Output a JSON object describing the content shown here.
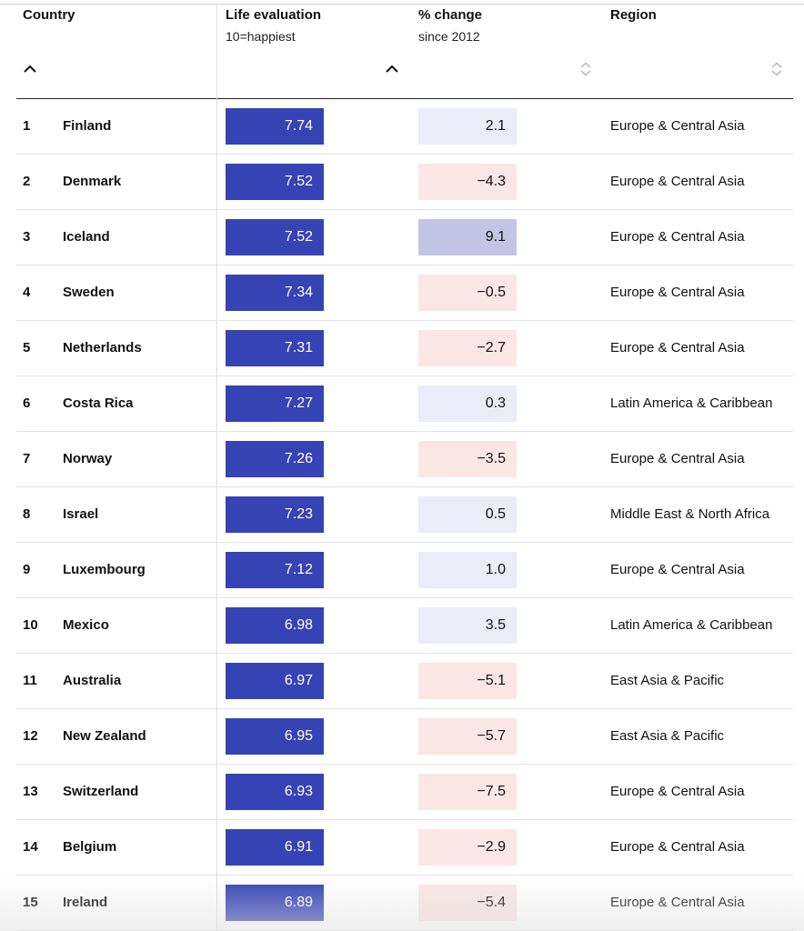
{
  "colors": {
    "score_bar": "#3643b4",
    "change_negative": "#fbe6e6",
    "change_small_positive": "#eaecf8",
    "change_large_positive": "#c4c5e6"
  },
  "headers": {
    "country": {
      "title": "Country"
    },
    "life": {
      "title": "Life evaluation",
      "subtitle": "10=happiest"
    },
    "change": {
      "title": "% change",
      "subtitle": "since 2012"
    },
    "region": {
      "title": "Region"
    }
  },
  "sort_icons": {
    "country": "chevron-up-icon",
    "life": "chevron-up-icon",
    "change": "sort-both-icon",
    "region": "sort-both-icon"
  },
  "chart_data": {
    "type": "table",
    "columns": [
      "Country",
      "Life evaluation",
      "% change",
      "Region"
    ],
    "rows": [
      {
        "rank": "1",
        "country": "Finland",
        "score": "7.74",
        "change": "2.1",
        "region": "Europe & Central Asia"
      },
      {
        "rank": "2",
        "country": "Denmark",
        "score": "7.52",
        "change": "−4.3",
        "region": "Europe & Central Asia"
      },
      {
        "rank": "3",
        "country": "Iceland",
        "score": "7.52",
        "change": "9.1",
        "region": "Europe & Central Asia"
      },
      {
        "rank": "4",
        "country": "Sweden",
        "score": "7.34",
        "change": "−0.5",
        "region": "Europe & Central Asia"
      },
      {
        "rank": "5",
        "country": "Netherlands",
        "score": "7.31",
        "change": "−2.7",
        "region": "Europe & Central Asia"
      },
      {
        "rank": "6",
        "country": "Costa Rica",
        "score": "7.27",
        "change": "0.3",
        "region": "Latin America & Caribbean"
      },
      {
        "rank": "7",
        "country": "Norway",
        "score": "7.26",
        "change": "−3.5",
        "region": "Europe & Central Asia"
      },
      {
        "rank": "8",
        "country": "Israel",
        "score": "7.23",
        "change": "0.5",
        "region": "Middle East & North Africa"
      },
      {
        "rank": "9",
        "country": "Luxembourg",
        "score": "7.12",
        "change": "1.0",
        "region": "Europe & Central Asia"
      },
      {
        "rank": "10",
        "country": "Mexico",
        "score": "6.98",
        "change": "3.5",
        "region": "Latin America & Caribbean"
      },
      {
        "rank": "11",
        "country": "Australia",
        "score": "6.97",
        "change": "−5.1",
        "region": "East Asia & Pacific"
      },
      {
        "rank": "12",
        "country": "New Zealand",
        "score": "6.95",
        "change": "−5.7",
        "region": "East Asia & Pacific"
      },
      {
        "rank": "13",
        "country": "Switzerland",
        "score": "6.93",
        "change": "−7.5",
        "region": "Europe & Central Asia"
      },
      {
        "rank": "14",
        "country": "Belgium",
        "score": "6.91",
        "change": "−2.9",
        "region": "Europe & Central Asia"
      },
      {
        "rank": "15",
        "country": "Ireland",
        "score": "6.89",
        "change": "−5.4",
        "region": "Europe & Central Asia"
      }
    ]
  }
}
